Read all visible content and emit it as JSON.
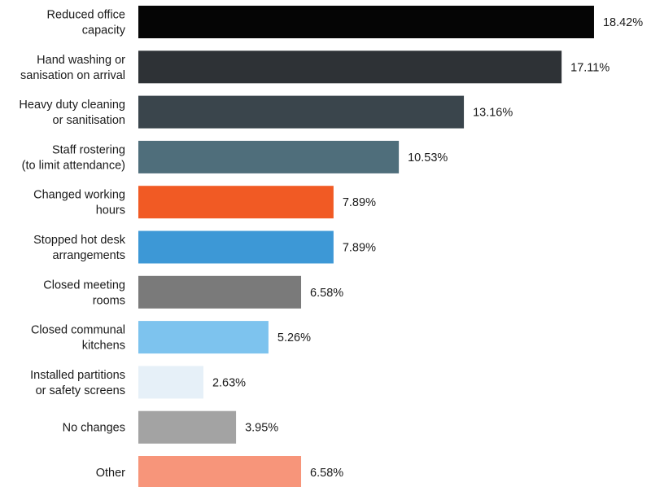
{
  "chart_data": {
    "type": "bar",
    "orientation": "horizontal",
    "title": "",
    "xlabel": "",
    "ylabel": "",
    "xlim": [
      0,
      20
    ],
    "grid": false,
    "legend": "none",
    "value_suffix": "%",
    "categories": [
      [
        "Reduced office",
        "capacity"
      ],
      [
        "Hand washing or",
        "sanisation on arrival"
      ],
      [
        "Heavy duty cleaning",
        "or sanitisation"
      ],
      [
        "Staff rostering",
        "(to limit attendance)"
      ],
      [
        "Changed working",
        "hours"
      ],
      [
        "Stopped hot desk",
        "arrangements"
      ],
      [
        "Closed meeting",
        "rooms"
      ],
      [
        "Closed communal",
        "kitchens"
      ],
      [
        "Installed partitions",
        "or safety screens"
      ],
      [
        "No changes"
      ],
      [
        "Other"
      ]
    ],
    "values": [
      18.42,
      17.11,
      13.16,
      10.53,
      7.89,
      7.89,
      6.58,
      5.26,
      2.63,
      3.95,
      6.58
    ],
    "value_labels": [
      "18.42%",
      "17.11%",
      "13.16%",
      "10.53%",
      "7.89%",
      "7.89%",
      "6.58%",
      "5.26%",
      "2.63%",
      "3.95%",
      "6.58%"
    ],
    "colors": [
      "#050505",
      "#2e3236",
      "#3a454c",
      "#4f6e7b",
      "#f15a24",
      "#3d98d6",
      "#7a7a7a",
      "#7dc3ee",
      "#e6f0f8",
      "#a3a3a3",
      "#f7957a"
    ]
  }
}
